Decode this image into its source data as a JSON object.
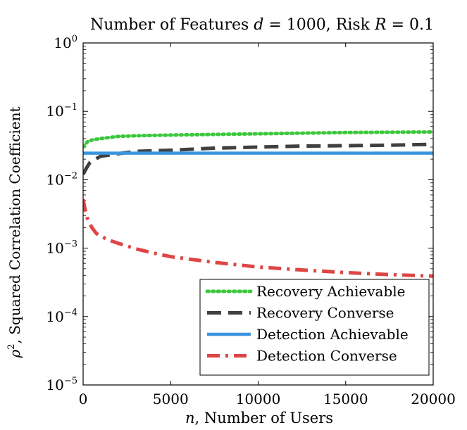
{
  "chart_data": {
    "type": "line",
    "title": "Number of Features d = 1000, Risk R = 0.1",
    "title_parts": {
      "prefix": "Number of Features ",
      "var_d": "d",
      "eq_d": " = 1000, Risk ",
      "var_R": "R",
      "eq_R": " = 0.1"
    },
    "xlabel": "n, Number of Users",
    "xlabel_parts": {
      "var": "n",
      "rest": ", Number of Users"
    },
    "ylabel": "ρ², Squared Correlation Coefficient",
    "ylabel_parts": {
      "var": "ρ",
      "sup": "2",
      "rest": ", Squared Correlation Coefficient"
    },
    "xlim": [
      0,
      20000
    ],
    "ylim": [
      1e-05,
      1
    ],
    "yscale": "log",
    "grid": false,
    "legend_position": "bottom-right",
    "x_ticks": [
      0,
      5000,
      10000,
      15000,
      20000
    ],
    "x_tick_labels": [
      "0",
      "5000",
      "10000",
      "15000",
      "20000"
    ],
    "y_ticks": [
      {
        "value": 1,
        "base": "10",
        "exp": "0"
      },
      {
        "value": 0.1,
        "base": "10",
        "exp": "−1"
      },
      {
        "value": 0.01,
        "base": "10",
        "exp": "−2"
      },
      {
        "value": 0.001,
        "base": "10",
        "exp": "−3"
      },
      {
        "value": 0.0001,
        "base": "10",
        "exp": "−4"
      },
      {
        "value": 1e-05,
        "base": "10",
        "exp": "−5"
      }
    ],
    "series": [
      {
        "name": "Recovery Achievable",
        "color": "#3cc83c",
        "dash": "dotted",
        "x": [
          0,
          250,
          500,
          1000,
          2000,
          3000,
          5000,
          7500,
          10000,
          12500,
          15000,
          17500,
          20000
        ],
        "y": [
          0.03,
          0.036,
          0.038,
          0.04,
          0.043,
          0.044,
          0.045,
          0.046,
          0.047,
          0.048,
          0.049,
          0.0495,
          0.05
        ]
      },
      {
        "name": "Recovery Converse",
        "color": "#404040",
        "dash": "dashed",
        "x": [
          0,
          200,
          400,
          700,
          1000,
          2000,
          3000,
          5000,
          7500,
          10000,
          12500,
          15000,
          17500,
          20000
        ],
        "y": [
          0.012,
          0.015,
          0.018,
          0.02,
          0.022,
          0.024,
          0.026,
          0.027,
          0.029,
          0.03,
          0.031,
          0.0315,
          0.032,
          0.033
        ]
      },
      {
        "name": "Detection Achievable",
        "color": "#3b95de",
        "dash": "solid",
        "x": [
          0,
          20000
        ],
        "y": [
          0.0245,
          0.0245
        ]
      },
      {
        "name": "Detection Converse",
        "color": "#de4545",
        "dash": "dashdot",
        "x": [
          0,
          100,
          250,
          500,
          750,
          1000,
          1500,
          2000,
          3000,
          4000,
          5000,
          7500,
          10000,
          12500,
          15000,
          17500,
          20000
        ],
        "y": [
          0.0052,
          0.0038,
          0.0027,
          0.002,
          0.00165,
          0.0015,
          0.0013,
          0.00118,
          0.00098,
          0.00085,
          0.00075,
          0.00062,
          0.00053,
          0.00048,
          0.00044,
          0.00041,
          0.00039
        ]
      }
    ]
  }
}
